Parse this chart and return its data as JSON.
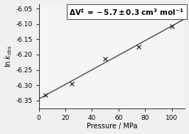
{
  "x_data": [
    5,
    25,
    50,
    75,
    100
  ],
  "y_data": [
    -6.333,
    -6.295,
    -6.215,
    -6.175,
    -6.108
  ],
  "fit_x_start": 0,
  "fit_x_end": 110,
  "fit_y_intercept": -6.345,
  "fit_slope": 0.00238,
  "xlabel": "Pressure / MPa",
  "xlim": [
    0,
    110
  ],
  "ylim": [
    -6.375,
    -6.035
  ],
  "yticks": [
    -6.35,
    -6.3,
    -6.25,
    -6.2,
    -6.15,
    -6.1,
    -6.05
  ],
  "xticks": [
    0,
    20,
    40,
    60,
    80,
    100
  ],
  "bg_color": "#f0f0f0",
  "plot_bg_color": "#f5f5f5",
  "line_color": "#2a2a2a",
  "marker_color": "#2a2a2a",
  "annotation_text": "ΔV‡ = −5.7 ± 0.3 cm³ mol⁻¹",
  "ann_fontsize": 7.5,
  "axis_fontsize": 7,
  "tick_fontsize": 6.5
}
